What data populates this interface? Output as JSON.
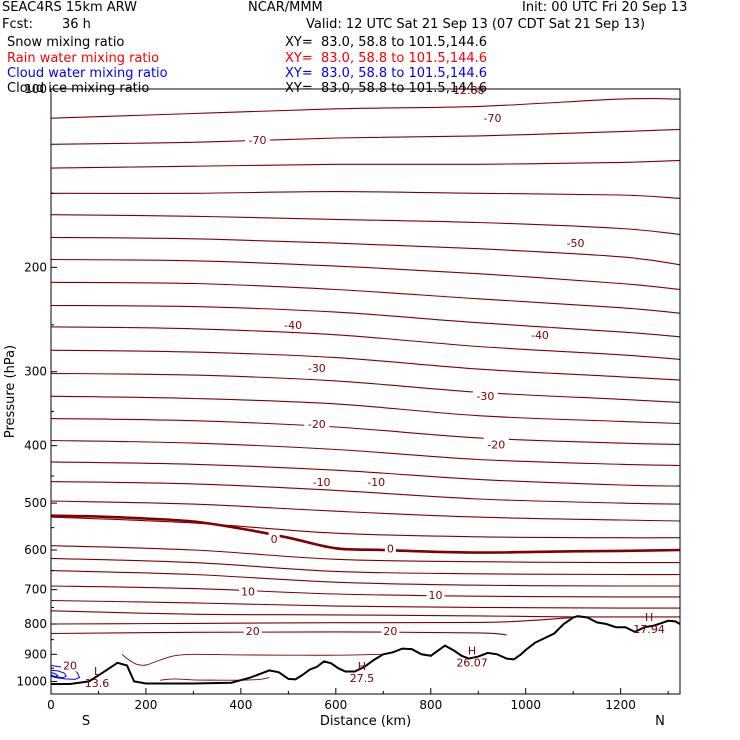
{
  "header": {
    "model": "SEAC4RS 15km ARW",
    "org": "NCAR/MMM",
    "init": "Init: 00 UTC Fri 20 Sep 13",
    "fcst_label": "Fcst:",
    "fcst_value": "36 h",
    "valid": "Valid: 12 UTC Sat 21 Sep 13 (07 CDT Sat 21 Sep 13)"
  },
  "legend": [
    {
      "label": "Snow mixing ratio",
      "xy": "XY=  83.0, 58.8 to 101.5,144.6",
      "color": "#000000"
    },
    {
      "label": "Rain water mixing ratio",
      "xy": "XY=  83.0, 58.8 to 101.5,144.6",
      "color": "#ff0000"
    },
    {
      "label": "Cloud water mixing ratio",
      "xy": "XY=  83.0, 58.8 to 101.5,144.6",
      "color": "#0000ff"
    },
    {
      "label": "Cloud ice mixing ratio",
      "xy": "XY=  83.0, 58.8 to 101.5,144.6",
      "color": "#000000"
    }
  ],
  "chart_data": {
    "type": "line",
    "xlabel": "Distance (km)",
    "ylabel": "Pressure (hPa)",
    "xlim": [
      0,
      1325
    ],
    "ylim": [
      1050,
      100
    ],
    "y_log": true,
    "x_ticks": [
      0,
      200,
      400,
      600,
      800,
      1000,
      1200
    ],
    "y_ticks": [
      100,
      200,
      300,
      400,
      500,
      600,
      700,
      800,
      900,
      1000
    ],
    "x_end_labels": [
      "S",
      "N"
    ],
    "temperature_contour_color": "#800000",
    "terrain_color": "#000000",
    "cloud_color": "#0000ff",
    "temperature_contours": [
      {
        "x": [
          0,
          300,
          600,
          900,
          1200,
          1325
        ],
        "y": [
          112,
          110,
          108,
          107,
          104,
          104
        ]
      },
      {
        "x": [
          0,
          300,
          600,
          900,
          1200,
          1325
        ],
        "y": [
          124,
          123,
          121,
          120,
          118,
          117
        ]
      },
      {
        "x": [
          0,
          300,
          600,
          900,
          1200,
          1325
        ],
        "y": [
          136,
          135,
          134,
          134,
          133,
          132
        ]
      },
      {
        "x": [
          0,
          300,
          600,
          900,
          1200,
          1325
        ],
        "y": [
          150,
          150,
          149,
          150,
          151,
          153
        ]
      },
      {
        "x": [
          0,
          300,
          600,
          900,
          1200,
          1325
        ],
        "y": [
          163,
          164,
          166,
          168,
          172,
          176
        ]
      },
      {
        "x": [
          0,
          300,
          600,
          900,
          1200,
          1325
        ],
        "y": [
          178,
          179,
          182,
          186,
          192,
          198
        ]
      },
      {
        "x": [
          0,
          300,
          600,
          900,
          1200,
          1325
        ],
        "y": [
          194,
          195,
          199,
          205,
          213,
          218
        ]
      },
      {
        "x": [
          0,
          300,
          600,
          900,
          1200,
          1325
        ],
        "y": [
          212,
          213,
          218,
          226,
          234,
          239
        ]
      },
      {
        "x": [
          0,
          300,
          600,
          900,
          1200,
          1325
        ],
        "y": [
          232,
          233,
          238,
          248,
          257,
          262
        ]
      },
      {
        "x": [
          0,
          300,
          600,
          900,
          1200,
          1325
        ],
        "y": [
          252,
          254,
          260,
          272,
          281,
          286
        ]
      },
      {
        "x": [
          0,
          300,
          600,
          900,
          1200,
          1325
        ],
        "y": [
          276,
          278,
          284,
          297,
          306,
          310
        ]
      },
      {
        "x": [
          0,
          300,
          600,
          900,
          1200,
          1325
        ],
        "y": [
          302,
          304,
          311,
          325,
          334,
          338
        ]
      },
      {
        "x": [
          0,
          300,
          600,
          900,
          1200,
          1325
        ],
        "y": [
          330,
          333,
          340,
          356,
          364,
          367
        ]
      },
      {
        "x": [
          0,
          300,
          600,
          900,
          1200,
          1325
        ],
        "y": [
          360,
          363,
          372,
          388,
          396,
          398
        ]
      },
      {
        "x": [
          0,
          300,
          600,
          900,
          1200,
          1325
        ],
        "y": [
          392,
          396,
          406,
          422,
          430,
          432
        ]
      },
      {
        "x": [
          0,
          300,
          600,
          900,
          1200,
          1325
        ],
        "y": [
          426,
          430,
          440,
          456,
          466,
          468
        ]
      },
      {
        "x": [
          0,
          300,
          600,
          900,
          1200,
          1325
        ],
        "y": [
          460,
          464,
          476,
          492,
          500,
          502
        ]
      },
      {
        "x": [
          0,
          300,
          600,
          900,
          1200,
          1325
        ],
        "y": [
          496,
          502,
          516,
          528,
          534,
          536
        ]
      },
      {
        "x": [
          0,
          300,
          600,
          900,
          1200,
          1325
        ],
        "y": [
          528,
          540,
          562,
          570,
          572,
          572
        ]
      },
      {
        "x": [
          0,
          100,
          200,
          300,
          400,
          500,
          600,
          700,
          800,
          900,
          1000,
          1100,
          1200,
          1325
        ],
        "y": [
          525,
          527,
          531,
          537,
          552,
          572,
          596,
          600,
          604,
          606,
          605,
          603,
          602,
          600
        ],
        "bold": true
      },
      {
        "x": [
          0,
          300,
          600,
          900,
          1200,
          1325
        ],
        "y": [
          590,
          600,
          622,
          628,
          630,
          630
        ]
      },
      {
        "x": [
          0,
          300,
          600,
          900,
          1200,
          1325
        ],
        "y": [
          620,
          630,
          652,
          658,
          660,
          660
        ]
      },
      {
        "x": [
          0,
          300,
          600,
          900,
          1200,
          1325
        ],
        "y": [
          650,
          660,
          680,
          688,
          690,
          690
        ]
      },
      {
        "x": [
          0,
          300,
          600,
          900,
          1200,
          1325
        ],
        "y": [
          690,
          697,
          712,
          718,
          720,
          720
        ]
      },
      {
        "x": [
          0,
          300,
          600,
          900,
          1200,
          1325
        ],
        "y": [
          730,
          737,
          746,
          750,
          752,
          752
        ]
      },
      {
        "x": [
          0,
          300,
          600,
          900,
          1100,
          1325
        ],
        "y": [
          760,
          770,
          772,
          775,
          778,
          778
        ]
      },
      {
        "x": [
          0,
          300,
          600,
          900,
          1000,
          1100
        ],
        "y": [
          800,
          798,
          796,
          795,
          790,
          780
        ]
      },
      {
        "x": [
          0,
          300,
          600,
          900,
          960
        ],
        "y": [
          830,
          826,
          825,
          828,
          835
        ]
      }
    ],
    "contour_labels": [
      {
        "x": 435,
        "p": 122,
        "text": "-70"
      },
      {
        "x": 930,
        "p": 112,
        "text": "-70"
      },
      {
        "x": 1105,
        "p": 182,
        "text": "-50"
      },
      {
        "x": 510,
        "p": 250,
        "text": "-40"
      },
      {
        "x": 1030,
        "p": 260,
        "text": "-40"
      },
      {
        "x": 560,
        "p": 296,
        "text": "-30"
      },
      {
        "x": 915,
        "p": 330,
        "text": "-30"
      },
      {
        "x": 560,
        "p": 368,
        "text": "-20"
      },
      {
        "x": 938,
        "p": 398,
        "text": "-20"
      },
      {
        "x": 570,
        "p": 461,
        "text": "-10"
      },
      {
        "x": 685,
        "p": 461,
        "text": "-10"
      },
      {
        "x": 470,
        "p": 575,
        "text": "0"
      },
      {
        "x": 715,
        "p": 596,
        "text": "0"
      },
      {
        "x": 415,
        "p": 705,
        "text": "10"
      },
      {
        "x": 810,
        "p": 715,
        "text": "10"
      },
      {
        "x": 425,
        "p": 822,
        "text": "20"
      },
      {
        "x": 715,
        "p": 822,
        "text": "20"
      },
      {
        "x": 40,
        "p": 940,
        "text": "20"
      }
    ],
    "terrain": {
      "x": [
        0,
        40,
        80,
        110,
        140,
        160,
        175,
        200,
        300,
        380,
        420,
        460,
        480,
        500,
        515,
        530,
        545,
        560,
        575,
        590,
        605,
        620,
        640,
        660,
        680,
        700,
        720,
        740,
        760,
        780,
        800,
        830,
        850,
        865,
        880,
        900,
        920,
        940,
        960,
        975,
        990,
        1000,
        1020,
        1040,
        1060,
        1080,
        1100,
        1110,
        1130,
        1150,
        1170,
        1190,
        1210,
        1230,
        1250,
        1270,
        1290,
        1300,
        1315,
        1325
      ],
      "y": [
        1010,
        1010,
        1000,
        965,
        930,
        940,
        1000,
        1008,
        1008,
        1005,
        985,
        958,
        965,
        990,
        992,
        975,
        955,
        945,
        925,
        932,
        950,
        962,
        962,
        945,
        920,
        900,
        893,
        880,
        882,
        900,
        905,
        870,
        888,
        905,
        915,
        908,
        895,
        900,
        915,
        918,
        900,
        885,
        860,
        845,
        830,
        800,
        780,
        776,
        780,
        795,
        800,
        810,
        810,
        825,
        810,
        805,
        795,
        790,
        792,
        800
      ]
    },
    "cloud_contours": [
      {
        "x": [
          0,
          20,
          40,
          55,
          60,
          50,
          30,
          10,
          0
        ],
        "y": [
          940,
          945,
          950,
          965,
          985,
          992,
          990,
          985,
          980
        ]
      },
      {
        "x": [
          0,
          15,
          28,
          32,
          25,
          10,
          0
        ],
        "y": [
          958,
          960,
          968,
          980,
          986,
          982,
          975
        ]
      },
      {
        "x": [
          0,
          8,
          14,
          10,
          0
        ],
        "y": [
          966,
          970,
          977,
          982,
          980
        ]
      }
    ],
    "rain_contours": [
      {
        "x": [
          150,
          160,
          180,
          200,
          230,
          260,
          300,
          400,
          500,
          600,
          700
        ],
        "y": [
          900,
          915,
          935,
          938,
          920,
          905,
          900,
          902,
          903,
          903,
          900
        ]
      },
      {
        "x": [
          230,
          260,
          300,
          360,
          400,
          440,
          460
        ],
        "y": [
          995,
          990,
          994,
          995,
          995,
          992,
          985
        ]
      }
    ],
    "max_min_markers": [
      {
        "x": 97,
        "p": 975,
        "letter": "L",
        "value": "13.6"
      },
      {
        "x": 655,
        "p": 956,
        "letter": "H",
        "value": "27.5"
      },
      {
        "x": 887,
        "p": 900,
        "letter": "H",
        "value": "26.07"
      },
      {
        "x": 1260,
        "p": 790,
        "letter": "H",
        "value": "17.94"
      }
    ],
    "top_label": "12.88"
  }
}
